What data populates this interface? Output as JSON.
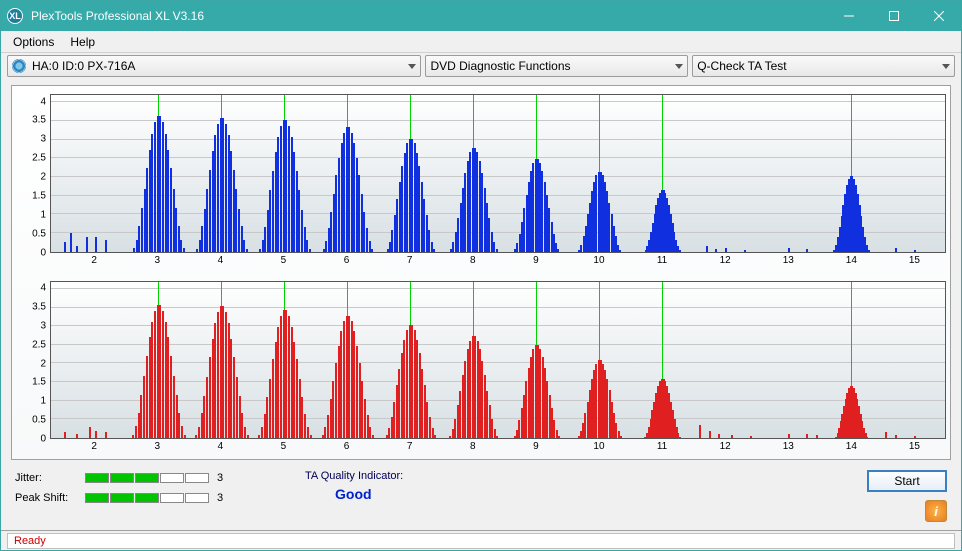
{
  "window": {
    "title": "PlexTools Professional XL V3.16",
    "min_tooltip": "Minimize",
    "max_tooltip": "Maximize",
    "close_tooltip": "Close"
  },
  "menu": {
    "options": "Options",
    "help": "Help"
  },
  "toolbar": {
    "device": "HA:0 ID:0  PX-716A",
    "func": "DVD Diagnostic Functions",
    "test": "Q-Check TA Test"
  },
  "charts": {
    "yticks": [
      0,
      0.5,
      1,
      1.5,
      2,
      2.5,
      3,
      3.5,
      4
    ],
    "ylim": [
      0,
      4.2
    ],
    "xticks": [
      2,
      3,
      4,
      5,
      6,
      7,
      8,
      9,
      10,
      11,
      12,
      13,
      14,
      15
    ],
    "xlim": [
      1.3,
      15.5
    ],
    "vlines": [
      3,
      4,
      5,
      6,
      7,
      8,
      9,
      10,
      11,
      14
    ],
    "grid_color": "#c8c8c8",
    "vline_color": "#00d400",
    "bg_top": "#ffffff",
    "bg_bot": "#d8e0e4",
    "border_color": "#555555",
    "chart1": {
      "color": "#1030e0",
      "peaks": [
        {
          "c": 3,
          "h": 3.65,
          "w": 0.88
        },
        {
          "c": 4,
          "h": 3.6,
          "w": 0.88
        },
        {
          "c": 5,
          "h": 3.55,
          "w": 0.88
        },
        {
          "c": 6,
          "h": 3.35,
          "w": 0.85
        },
        {
          "c": 7,
          "h": 3.05,
          "w": 0.82
        },
        {
          "c": 8,
          "h": 2.8,
          "w": 0.8
        },
        {
          "c": 9,
          "h": 2.5,
          "w": 0.76
        },
        {
          "c": 10,
          "h": 2.15,
          "w": 0.72
        },
        {
          "c": 11,
          "h": 1.65,
          "w": 0.6
        },
        {
          "c": 14,
          "h": 2.05,
          "w": 0.6
        }
      ],
      "noise": [
        {
          "x": 1.5,
          "h": 0.25
        },
        {
          "x": 1.6,
          "h": 0.5
        },
        {
          "x": 1.7,
          "h": 0.15
        },
        {
          "x": 1.85,
          "h": 0.4
        },
        {
          "x": 2.0,
          "h": 0.4
        },
        {
          "x": 2.15,
          "h": 0.3
        },
        {
          "x": 11.7,
          "h": 0.15
        },
        {
          "x": 11.85,
          "h": 0.08
        },
        {
          "x": 12.0,
          "h": 0.1
        },
        {
          "x": 12.3,
          "h": 0.05
        },
        {
          "x": 13.0,
          "h": 0.1
        },
        {
          "x": 13.3,
          "h": 0.08
        },
        {
          "x": 14.7,
          "h": 0.1
        },
        {
          "x": 15.0,
          "h": 0.05
        }
      ]
    },
    "chart2": {
      "color": "#e02020",
      "peaks": [
        {
          "c": 3,
          "h": 3.6,
          "w": 0.9
        },
        {
          "c": 4,
          "h": 3.55,
          "w": 0.9
        },
        {
          "c": 5,
          "h": 3.45,
          "w": 0.9
        },
        {
          "c": 6,
          "h": 3.3,
          "w": 0.88
        },
        {
          "c": 7,
          "h": 3.05,
          "w": 0.85
        },
        {
          "c": 8,
          "h": 2.75,
          "w": 0.82
        },
        {
          "c": 9,
          "h": 2.5,
          "w": 0.78
        },
        {
          "c": 10,
          "h": 2.1,
          "w": 0.74
        },
        {
          "c": 11,
          "h": 1.6,
          "w": 0.62
        },
        {
          "c": 14,
          "h": 1.4,
          "w": 0.55
        }
      ],
      "noise": [
        {
          "x": 1.5,
          "h": 0.15
        },
        {
          "x": 1.7,
          "h": 0.1
        },
        {
          "x": 1.9,
          "h": 0.3
        },
        {
          "x": 2.0,
          "h": 0.2
        },
        {
          "x": 2.15,
          "h": 0.15
        },
        {
          "x": 11.6,
          "h": 0.35
        },
        {
          "x": 11.75,
          "h": 0.2
        },
        {
          "x": 11.9,
          "h": 0.1
        },
        {
          "x": 12.1,
          "h": 0.08
        },
        {
          "x": 12.4,
          "h": 0.05
        },
        {
          "x": 13.0,
          "h": 0.1
        },
        {
          "x": 13.3,
          "h": 0.12
        },
        {
          "x": 13.45,
          "h": 0.08
        },
        {
          "x": 14.55,
          "h": 0.15
        },
        {
          "x": 14.7,
          "h": 0.08
        },
        {
          "x": 15.0,
          "h": 0.05
        }
      ]
    }
  },
  "metrics": {
    "jitter": {
      "label": "Jitter:",
      "value": "3",
      "segments": 5,
      "filled": 3,
      "on_color": "#00c400"
    },
    "peakshift": {
      "label": "Peak Shift:",
      "value": "3",
      "segments": 5,
      "filled": 3,
      "on_color": "#00c400"
    }
  },
  "quality": {
    "label": "TA Quality Indicator:",
    "value": "Good",
    "label_color": "#000055",
    "value_color": "#0022cc"
  },
  "actions": {
    "start": "Start"
  },
  "status": {
    "text": "Ready",
    "color": "#cc0000"
  }
}
